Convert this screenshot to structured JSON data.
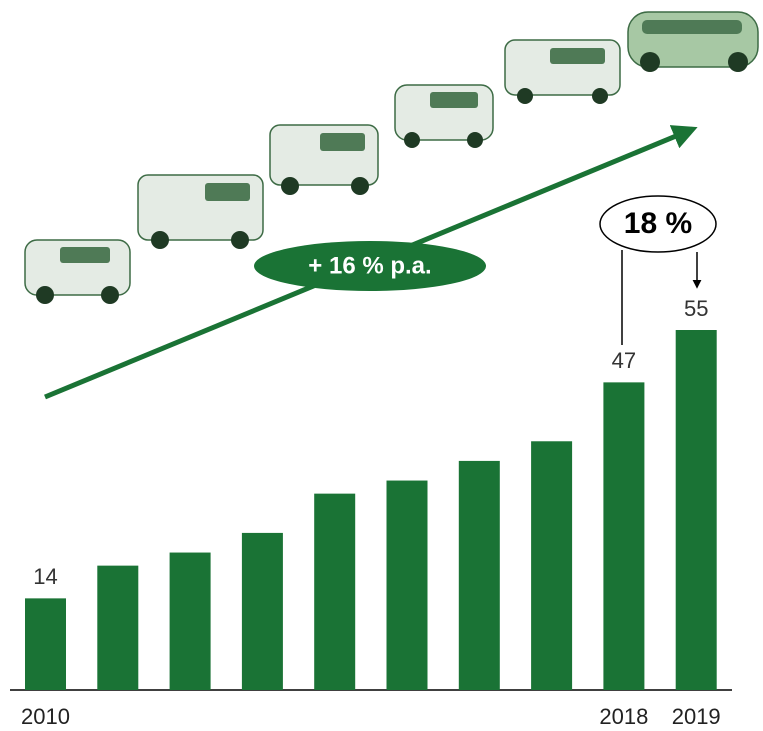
{
  "chart_data": {
    "type": "bar",
    "categories": [
      "2010",
      null,
      null,
      null,
      null,
      null,
      null,
      null,
      "2018",
      "2019"
    ],
    "values": [
      14,
      19,
      21,
      24,
      30,
      32,
      35,
      38,
      47,
      55
    ],
    "value_labels": [
      "14",
      null,
      null,
      null,
      null,
      null,
      null,
      null,
      "47",
      "55"
    ],
    "color": "#1a7335",
    "annotations": [
      "+ 16 % p.a.",
      "18 %"
    ]
  }
}
